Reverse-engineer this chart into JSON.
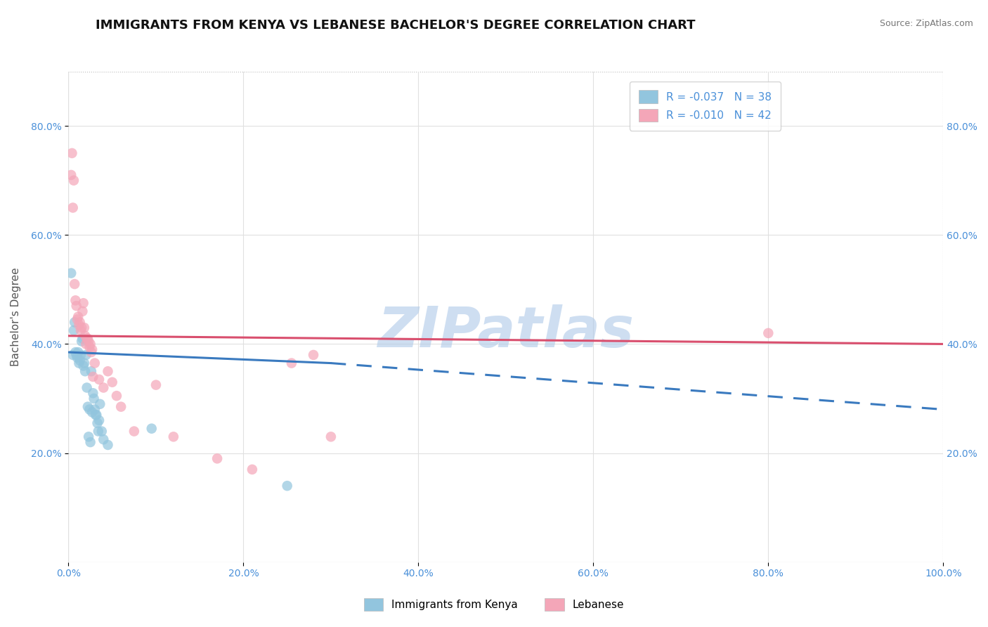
{
  "title": "IMMIGRANTS FROM KENYA VS LEBANESE BACHELOR'S DEGREE CORRELATION CHART",
  "source": "Source: ZipAtlas.com",
  "ylabel": "Bachelor's Degree",
  "legend_entry1": "R = -0.037   N = 38",
  "legend_entry2": "R = -0.010   N = 42",
  "legend_label1": "Immigrants from Kenya",
  "legend_label2": "Lebanese",
  "color_kenya": "#92c5de",
  "color_lebanese": "#f4a6b8",
  "trend_color_kenya": "#3a7abf",
  "trend_color_lebanese": "#d94f6e",
  "watermark": "ZIPatlas",
  "kenya_x": [
    0.3,
    0.5,
    0.6,
    0.7,
    0.8,
    0.9,
    1.0,
    1.1,
    1.2,
    1.3,
    1.4,
    1.5,
    1.6,
    1.7,
    1.8,
    1.9,
    2.0,
    2.1,
    2.2,
    2.3,
    2.4,
    2.5,
    2.6,
    2.7,
    2.8,
    2.9,
    3.0,
    3.1,
    3.2,
    3.3,
    3.4,
    3.5,
    3.6,
    3.8,
    4.0,
    4.5,
    9.5,
    25.0
  ],
  "kenya_y": [
    53.0,
    38.0,
    42.5,
    44.0,
    38.5,
    38.0,
    37.5,
    38.5,
    36.5,
    37.0,
    38.0,
    40.5,
    41.0,
    36.0,
    36.5,
    35.0,
    38.0,
    32.0,
    28.5,
    23.0,
    28.0,
    22.0,
    35.0,
    27.5,
    31.0,
    30.0,
    28.0,
    27.0,
    27.0,
    25.5,
    24.0,
    26.0,
    29.0,
    24.0,
    22.5,
    21.5,
    24.5,
    14.0
  ],
  "lebanese_x": [
    0.3,
    0.4,
    0.5,
    0.6,
    0.7,
    0.8,
    0.9,
    1.0,
    1.1,
    1.2,
    1.3,
    1.4,
    1.5,
    1.6,
    1.7,
    1.8,
    1.9,
    2.0,
    2.1,
    2.2,
    2.3,
    2.4,
    2.5,
    2.6,
    2.7,
    2.8,
    3.0,
    3.5,
    4.0,
    4.5,
    5.0,
    5.5,
    6.0,
    7.5,
    10.0,
    12.0,
    17.0,
    21.0,
    25.5,
    28.0,
    30.0,
    80.0
  ],
  "lebanese_y": [
    71.0,
    75.0,
    65.0,
    70.0,
    51.0,
    48.0,
    47.0,
    44.5,
    45.0,
    43.5,
    44.0,
    42.5,
    43.0,
    46.0,
    47.5,
    43.0,
    41.5,
    40.0,
    41.0,
    41.0,
    40.5,
    39.5,
    40.0,
    38.5,
    39.0,
    34.0,
    36.5,
    33.5,
    32.0,
    35.0,
    33.0,
    30.5,
    28.5,
    24.0,
    32.5,
    23.0,
    19.0,
    17.0,
    36.5,
    38.0,
    23.0,
    42.0
  ],
  "xlim": [
    0,
    100
  ],
  "ylim": [
    0,
    90
  ],
  "yticks": [
    20,
    40,
    60,
    80
  ],
  "xticks": [
    0,
    20,
    40,
    60,
    80,
    100
  ],
  "background_color": "#ffffff",
  "grid_color": "#e0e0e0",
  "title_fontsize": 13,
  "axis_label_fontsize": 11,
  "tick_fontsize": 10,
  "tick_color": "#4a90d9",
  "watermark_color": "#aec9e8",
  "watermark_fontsize": 58,
  "kenya_trend_x0": 0,
  "kenya_trend_x1": 30,
  "kenya_trend_y0": 38.5,
  "kenya_trend_y1": 36.5,
  "kenya_dash_x0": 30,
  "kenya_dash_x1": 100,
  "kenya_dash_y0": 36.5,
  "kenya_dash_y1": 28.0,
  "leb_trend_x0": 0,
  "leb_trend_x1": 100,
  "leb_trend_y0": 41.5,
  "leb_trend_y1": 40.0
}
